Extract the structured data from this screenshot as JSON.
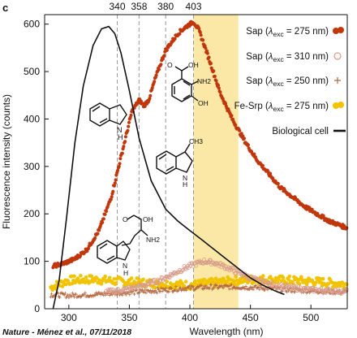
{
  "panel_label": "c",
  "credit": "Nature - Ménez et al., 07/11/2018",
  "colors": {
    "sap_275": "#c1370c",
    "sap_310": "#d79a8a",
    "sap_250": "#b56840",
    "fe_srp": "#f2c300",
    "bio_cell": "#111111",
    "highlight": "#fbe7a6",
    "guide": "#9a9a9a"
  },
  "molecules": [
    {
      "name": "indole",
      "atoms": [
        "N",
        "H"
      ]
    },
    {
      "name": "3-hydroxyanthranilic acid",
      "atoms": [
        "O",
        "OH",
        "NH2",
        "OH"
      ]
    },
    {
      "name": "3-methylindole",
      "atoms": [
        "CH3",
        "N",
        "H"
      ]
    },
    {
      "name": "tryptophan",
      "atoms": [
        "O",
        "OH",
        "NH2",
        "N",
        "H"
      ]
    }
  ],
  "chart_data": {
    "type": "line",
    "title": "",
    "xlabel": "Wavelength (nm)",
    "ylabel": "Fluorescence intensity (counts)",
    "xlim": [
      280,
      530
    ],
    "ylim": [
      0,
      620
    ],
    "x_ticks": [
      300,
      350,
      400,
      450,
      500
    ],
    "y_ticks": [
      0,
      100,
      200,
      300,
      400,
      500,
      600
    ],
    "grid": false,
    "legend_position": "top-right",
    "reference_lines": [
      {
        "x": 340,
        "label": "340"
      },
      {
        "x": 358,
        "label": "358"
      },
      {
        "x": 380,
        "label": "380"
      },
      {
        "x": 403,
        "label": "403"
      }
    ],
    "highlight_band": [
      403,
      440
    ],
    "series": [
      {
        "name": "Sap (λexc = 275 nm)",
        "legend_label": "Sap (",
        "legend_lambda": "λ",
        "legend_sub": "exc",
        "legend_rest": " = 275 nm)",
        "marker": "filled-circle",
        "color": "#c1370c",
        "x": [
          287,
          295,
          305,
          315,
          325,
          335,
          345,
          352,
          358,
          362,
          366,
          372,
          380,
          390,
          397,
          403,
          407,
          412,
          418,
          425,
          435,
          445,
          455,
          465,
          475,
          485,
          495,
          505,
          515,
          525,
          530
        ],
        "y": [
          90,
          95,
          105,
          125,
          165,
          235,
          340,
          415,
          440,
          428,
          440,
          490,
          545,
          580,
          595,
          605,
          590,
          555,
          510,
          455,
          400,
          355,
          315,
          285,
          255,
          235,
          215,
          200,
          185,
          175,
          170
        ]
      },
      {
        "name": "Sap (λexc = 310 nm)",
        "legend_label": "Sap (",
        "legend_lambda": "λ",
        "legend_sub": "exc",
        "legend_rest": " = 310 nm)",
        "marker": "open-circle",
        "color": "#d79a8a",
        "x": [
          330,
          345,
          360,
          375,
          385,
          395,
          405,
          412,
          420,
          430,
          440,
          455,
          470,
          485,
          500,
          515,
          530
        ],
        "y": [
          35,
          40,
          48,
          60,
          72,
          85,
          95,
          100,
          97,
          88,
          76,
          60,
          50,
          44,
          40,
          38,
          36
        ]
      },
      {
        "name": "Sap (λexc = 250 nm)",
        "legend_label": "Sap (",
        "legend_lambda": "λ",
        "legend_sub": "exc",
        "legend_rest": " = 250 nm)",
        "marker": "plus",
        "color": "#b56840",
        "x": [
          285,
          300,
          320,
          340,
          360,
          380,
          400,
          420,
          440,
          460,
          480,
          500,
          515,
          530
        ],
        "y": [
          30,
          28,
          30,
          33,
          36,
          40,
          44,
          46,
          46,
          44,
          40,
          38,
          36,
          35
        ]
      },
      {
        "name": "Fe-Srp (λexc = 275 nm)",
        "legend_label": "Fe-Srp (",
        "legend_lambda": "λ",
        "legend_sub": "exc",
        "legend_rest": " = 275 nm)",
        "marker": "filled-circle",
        "color": "#f2c300",
        "x": [
          285,
          300,
          320,
          340,
          360,
          380,
          400,
          420,
          440,
          460,
          480,
          500,
          515,
          530
        ],
        "y": [
          45,
          60,
          62,
          58,
          55,
          52,
          50,
          55,
          60,
          62,
          60,
          58,
          55,
          52
        ]
      },
      {
        "name": "Biological cell",
        "legend_label": "Biological cell",
        "marker": "line",
        "color": "#111111",
        "x": [
          287,
          292,
          298,
          305,
          312,
          320,
          327,
          333,
          338,
          343,
          350,
          358,
          368,
          380,
          390,
          400,
          410,
          420,
          430,
          440,
          450,
          460,
          470,
          478
        ],
        "y": [
          0,
          60,
          190,
          350,
          470,
          555,
          590,
          595,
          580,
          540,
          460,
          360,
          270,
          210,
          185,
          165,
          145,
          125,
          105,
          85,
          65,
          50,
          38,
          30
        ]
      }
    ]
  }
}
